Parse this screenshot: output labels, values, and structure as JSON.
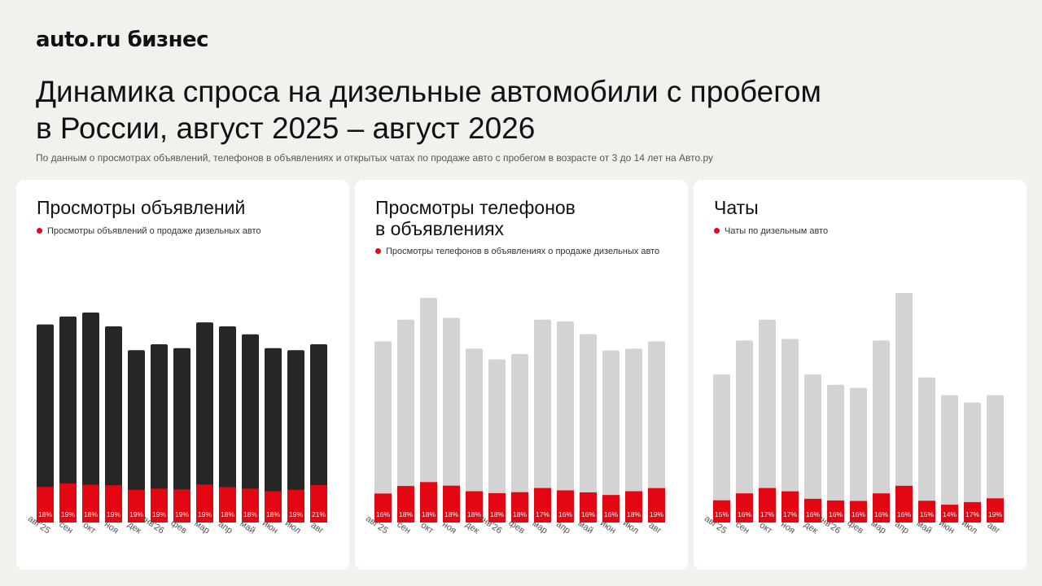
{
  "header": {
    "logo": "auto.ru бизнес",
    "title_line1": "Динамика спроса на дизельные автомобили с пробегом",
    "title_line2": "в России, август 2025 – август 2026",
    "subtitle": "По данным о просмотрах объявлений, телефонов в объявлениях и открытых чатах по продаже авто с пробегом в возрасте от 3 до 14 лет на Авто.ру"
  },
  "colors": {
    "accent": "#e30613",
    "dark_bar": "#262626",
    "grey_bar": "#d3d3d3",
    "background": "#f3f1ee",
    "card": "#ffffff"
  },
  "cards": [
    {
      "title_line1": "Просмотры объявлений",
      "title_line2": "",
      "legend": "Просмотры объявлений о продаже дизельных авто"
    },
    {
      "title_line1": "Просмотры телефонов",
      "title_line2": "в объявлениях",
      "legend": "Просмотры телефонов в объявлениях о продаже дизельных авто"
    },
    {
      "title_line1": "Чаты",
      "title_line2": "",
      "legend": "Чаты по дизельным авто"
    }
  ],
  "chart_data": [
    {
      "type": "bar",
      "title": "Просмотры объявлений",
      "categories": [
        "авг'25",
        "сен",
        "окт",
        "ноя",
        "дек",
        "янв'26",
        "фев",
        "мар",
        "апр",
        "май",
        "июн",
        "июл",
        "авг"
      ],
      "total_height": [
        100,
        104,
        106,
        99,
        87,
        90,
        88,
        101,
        99,
        95,
        88,
        87,
        90
      ],
      "share": [
        18,
        19,
        18,
        19,
        19,
        19,
        19,
        19,
        18,
        18,
        18,
        19,
        21
      ],
      "share_labels": [
        "18%",
        "19%",
        "18%",
        "19%",
        "19%",
        "19%",
        "19%",
        "19%",
        "18%",
        "18%",
        "18%",
        "19%",
        "21%"
      ],
      "series": [
        {
          "name": "Просмотры объявлений о продаже дизельных авто",
          "color": "#e30613"
        }
      ],
      "bar_color": "#262626",
      "ylim": [
        0,
        106
      ],
      "grid": false,
      "legend_position": "top-left"
    },
    {
      "type": "bar",
      "title": "Просмотры телефонов в объявлениях",
      "categories": [
        "авг'25",
        "сен",
        "окт",
        "ноя",
        "дек",
        "янв'26",
        "фев",
        "мар",
        "апр",
        "май",
        "июн",
        "июл",
        "авг"
      ],
      "total_height": [
        100,
        112,
        124,
        113,
        96,
        90,
        93,
        112,
        111,
        104,
        95,
        96,
        100
      ],
      "share": [
        16,
        18,
        18,
        18,
        18,
        18,
        18,
        17,
        16,
        16,
        16,
        18,
        19
      ],
      "share_labels": [
        "16%",
        "18%",
        "18%",
        "18%",
        "18%",
        "18%",
        "18%",
        "17%",
        "16%",
        "16%",
        "16%",
        "18%",
        "19%"
      ],
      "series": [
        {
          "name": "Просмотры телефонов в объявлениях о продаже дизельных авто",
          "color": "#e30613"
        }
      ],
      "bar_color": "#d3d3d3",
      "ylim": [
        0,
        124
      ],
      "grid": false,
      "legend_position": "top-left"
    },
    {
      "type": "bar",
      "title": "Чаты",
      "categories": [
        "авг'25",
        "сен",
        "окт",
        "ноя",
        "дек",
        "янв'26",
        "фев",
        "мар",
        "апр",
        "май",
        "июн",
        "июл",
        "авг"
      ],
      "total_height": [
        100,
        123,
        137,
        124,
        100,
        93,
        91,
        123,
        155,
        98,
        86,
        81,
        86
      ],
      "share": [
        15,
        16,
        17,
        17,
        16,
        16,
        16,
        16,
        16,
        15,
        14,
        17,
        19
      ],
      "share_labels": [
        "15%",
        "16%",
        "17%",
        "17%",
        "16%",
        "16%",
        "16%",
        "16%",
        "16%",
        "15%",
        "14%",
        "17%",
        "19%"
      ],
      "series": [
        {
          "name": "Чаты по дизельным авто",
          "color": "#e30613"
        }
      ],
      "bar_color": "#d3d3d3",
      "ylim": [
        0,
        155
      ],
      "grid": false,
      "legend_position": "top-left"
    }
  ]
}
